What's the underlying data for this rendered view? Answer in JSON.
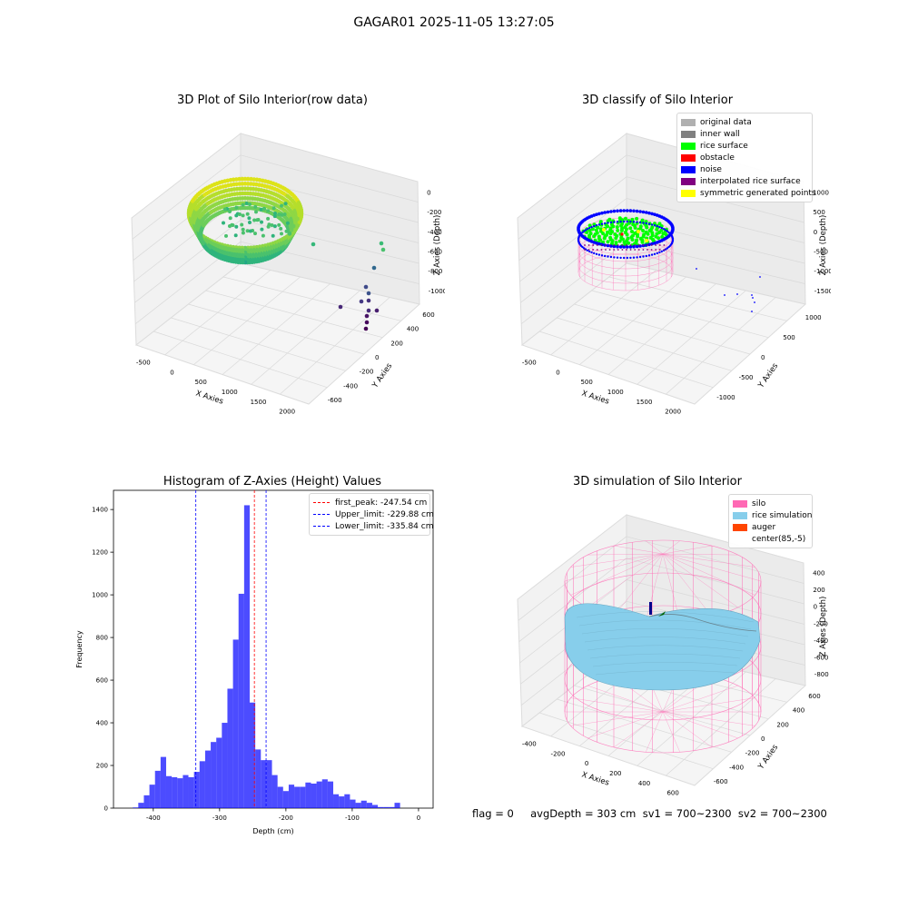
{
  "suptitle": "GAGAR01 2025-11-05 13:27:05",
  "footer": "flag = 0     avgDepth = 303 cm  sv1 = 700~2300  sv2 = 700~2300",
  "colors": {
    "rice_green": "#00ff00",
    "noise_blue": "#0000ff",
    "obstacle_red": "#ff0000",
    "inner_wall_gray": "#808080",
    "original_gray": "#b0b0b0",
    "interp_purple": "#800080",
    "sym_yellow": "#ffff00",
    "silo_pink": "#ff69b4",
    "rice_sim_blue": "#87ceeb",
    "auger_orange": "#ff4500",
    "hist_blue": "#0000ff"
  },
  "chart_data": [
    {
      "type": "scatter",
      "projection": "3d",
      "title": "3D Plot of Silo Interior(row data)",
      "xlabel": "X Axies",
      "ylabel": "Y Axies",
      "zlabel": "Z Axies (Depth)",
      "xticks": [
        "-500",
        "0",
        "500",
        "1000",
        "1500",
        "2000"
      ],
      "yticks": [
        "-600",
        "-400",
        "-200",
        "0",
        "200",
        "400",
        "600"
      ],
      "zticks": [
        "0",
        "-200",
        "-400",
        "-600",
        "-800",
        "-1000"
      ],
      "colormap": "viridis"
    },
    {
      "type": "scatter",
      "projection": "3d",
      "title": "3D classify of Silo Interior",
      "xlabel": "X Axies",
      "ylabel": "Y Axies",
      "zlabel": "Z Axies (Depth)",
      "xticks": [
        "-500",
        "0",
        "500",
        "1000",
        "1500",
        "2000"
      ],
      "yticks": [
        "-1000",
        "-500",
        "0",
        "500",
        "1000"
      ],
      "zticks": [
        "1000",
        "500",
        "0",
        "-500",
        "-1000",
        "-1500"
      ],
      "legend": [
        {
          "label": "original data",
          "color": "#b0b0b0"
        },
        {
          "label": "inner wall",
          "color": "#808080"
        },
        {
          "label": "rice surface",
          "color": "#00ff00"
        },
        {
          "label": "obstacle",
          "color": "#ff0000"
        },
        {
          "label": "noise",
          "color": "#0000ff"
        },
        {
          "label": "interpolated rice surface",
          "color": "#800080"
        },
        {
          "label": "symmetric generated points",
          "color": "#ffff00"
        }
      ],
      "legend_loc": "upper right"
    },
    {
      "type": "bar",
      "title": "Histogram of Z-Axies (Height) Values",
      "xlabel": "Depth (cm)",
      "ylabel": "Frequency",
      "xlim": [
        -460,
        22
      ],
      "ylim": [
        0,
        1490
      ],
      "xticks": [
        -400,
        -300,
        -200,
        -100,
        0
      ],
      "yticks": [
        0,
        200,
        400,
        600,
        800,
        1000,
        1200,
        1400
      ],
      "bin_width": 8.4,
      "bin_start": -431,
      "counts": [
        3,
        25,
        60,
        110,
        175,
        240,
        150,
        145,
        140,
        155,
        145,
        170,
        220,
        270,
        310,
        330,
        400,
        560,
        790,
        1005,
        1420,
        495,
        275,
        225,
        225,
        155,
        100,
        80,
        110,
        100,
        100,
        120,
        115,
        125,
        135,
        125,
        65,
        55,
        65,
        40,
        25,
        35,
        25,
        15,
        5,
        5,
        5,
        25
      ],
      "vlines": [
        {
          "label": "first_peak: -247.54 cm",
          "x": -247.54,
          "color": "#ff0000"
        },
        {
          "label": "Upper_limit: -229.88 cm",
          "x": -229.88,
          "color": "#0000ff"
        },
        {
          "label": "Lower_limit: -335.84 cm",
          "x": -335.84,
          "color": "#0000ff"
        }
      ],
      "legend_loc": "upper right"
    },
    {
      "type": "surface",
      "projection": "3d",
      "title": "3D simulation of Silo Interior",
      "xlabel": "X Axies",
      "ylabel": "Y Axies",
      "zlabel": "Z Axies (Depth)",
      "xticks": [
        "-400",
        "-200",
        "0",
        "200",
        "400",
        "600"
      ],
      "yticks": [
        "-600",
        "-400",
        "-200",
        "0",
        "200",
        "400",
        "600"
      ],
      "zticks": [
        "400",
        "200",
        "0",
        "-200",
        "-400",
        "-600",
        "-800"
      ],
      "legend": [
        {
          "label": "silo",
          "color": "#ff69b4"
        },
        {
          "label": "rice simulation",
          "color": "#87ceeb"
        },
        {
          "label": "auger",
          "color": "#ff4500"
        },
        {
          "label": "center(85,-5)",
          "color": "#ffffff"
        }
      ],
      "legend_loc": "upper right"
    }
  ]
}
